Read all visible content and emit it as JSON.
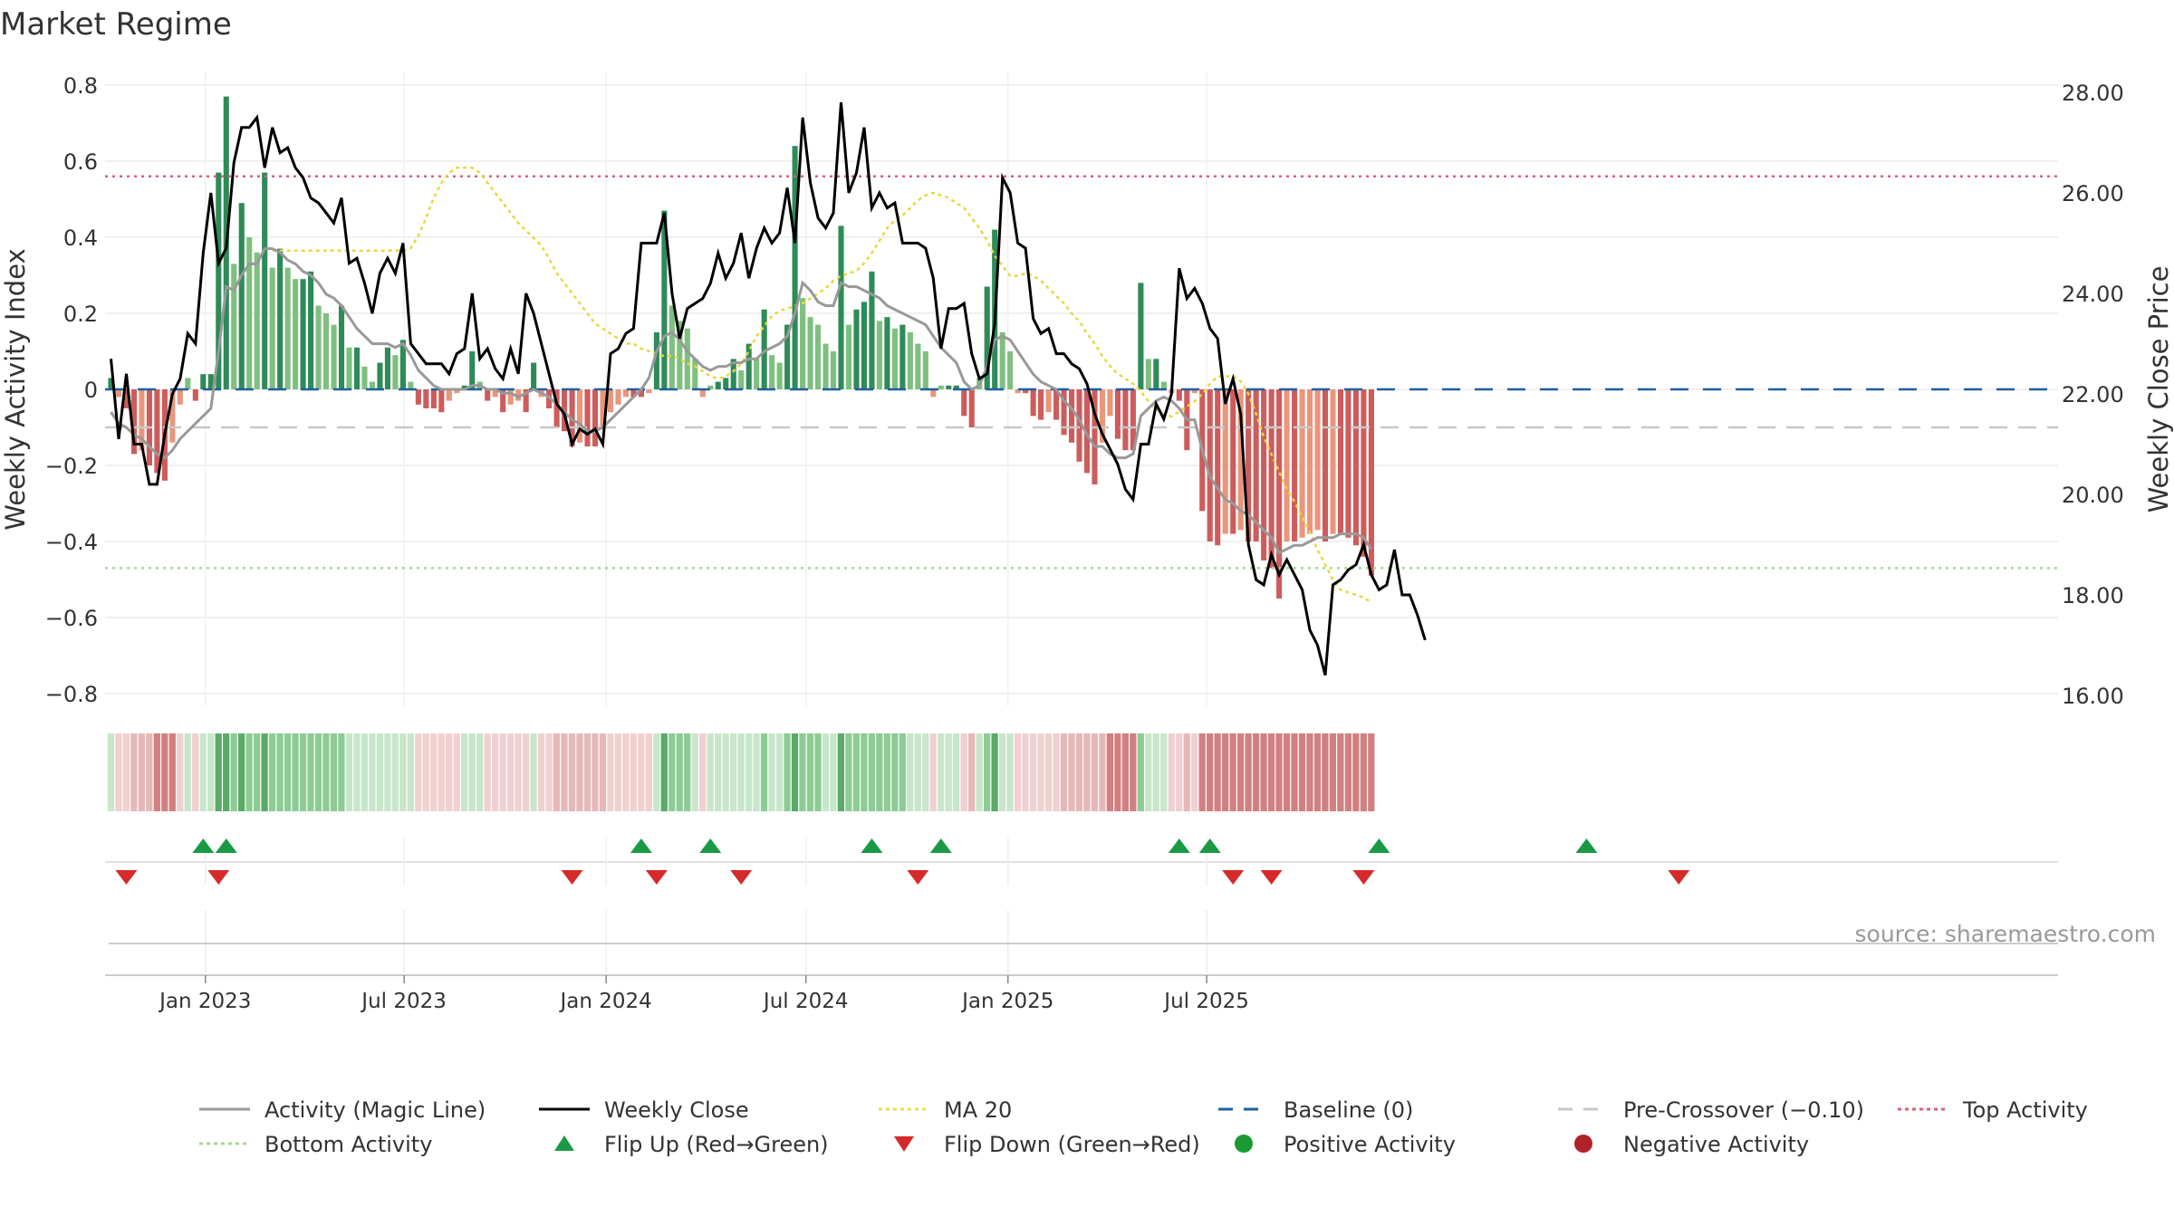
{
  "title": "Market Regime",
  "source": "source: sharemaestro.com",
  "chart_data": {
    "type": "bar",
    "x_start": "2022-10-07",
    "x_interval": "weekly",
    "x_ticks": [
      "Jan 2023",
      "Jul 2023",
      "Jan 2024",
      "Jul 2024",
      "Jan 2025",
      "Jul 2025"
    ],
    "left_axis": {
      "label": "Weekly Activity Index",
      "range": [
        -0.83,
        0.8
      ],
      "ticks": [
        "0.8",
        "0.6",
        "0.4",
        "0.2",
        "0",
        "−0.2",
        "−0.4",
        "−0.6",
        "−0.8"
      ]
    },
    "right_axis": {
      "label": "Weekly Close Price",
      "range": [
        15.6,
        28.2
      ],
      "ticks": [
        "28.00",
        "26.00",
        "24.00",
        "22.00",
        "20.00",
        "18.00",
        "16.00"
      ]
    },
    "reference_lines": {
      "baseline": 0,
      "pre_crossover": -0.1,
      "top_activity": 0.56,
      "bottom_activity": -0.47
    },
    "activity_index": [
      0.03,
      -0.02,
      -0.05,
      -0.17,
      -0.16,
      -0.2,
      -0.22,
      -0.24,
      -0.14,
      -0.04,
      0.03,
      -0.03,
      0.04,
      0.04,
      0.57,
      0.77,
      0.33,
      0.49,
      0.4,
      0.36,
      0.57,
      0.32,
      0.37,
      0.32,
      0.29,
      0.29,
      0.31,
      0.22,
      0.2,
      0.17,
      0.22,
      0.11,
      0.11,
      0.06,
      0.02,
      0.07,
      0.11,
      0.09,
      0.13,
      0.02,
      -0.04,
      -0.05,
      -0.05,
      -0.06,
      -0.03,
      -0.01,
      0.01,
      0.1,
      0.02,
      -0.03,
      -0.02,
      -0.06,
      -0.04,
      -0.03,
      -0.06,
      0.07,
      -0.02,
      -0.05,
      -0.1,
      -0.11,
      -0.15,
      -0.14,
      -0.15,
      -0.15,
      -0.1,
      -0.06,
      -0.04,
      -0.02,
      -0.02,
      -0.02,
      -0.01,
      0.15,
      0.47,
      0.22,
      0.18,
      0.16,
      0.08,
      -0.02,
      0.01,
      0.02,
      0.03,
      0.08,
      0.05,
      0.12,
      0.08,
      0.21,
      0.09,
      0.07,
      0.17,
      0.64,
      0.24,
      0.19,
      0.17,
      0.12,
      0.1,
      0.43,
      0.17,
      0.21,
      0.23,
      0.31,
      0.18,
      0.19,
      0.16,
      0.17,
      0.15,
      0.12,
      0.1,
      -0.02,
      0.01,
      0.01,
      0.01,
      -0.07,
      -0.1,
      0.03,
      0.27,
      0.42,
      0.15,
      0.1,
      -0.01,
      -0.01,
      -0.07,
      -0.08,
      -0.06,
      -0.08,
      -0.12,
      -0.14,
      -0.19,
      -0.22,
      -0.25,
      -0.14,
      -0.07,
      -0.13,
      -0.16,
      -0.16,
      0.28,
      0.08,
      0.08,
      0.02,
      -0.01,
      -0.03,
      -0.16,
      -0.01,
      -0.32,
      -0.4,
      -0.41,
      -0.38,
      -0.38,
      -0.37,
      -0.4,
      -0.4,
      -0.45,
      -0.47,
      -0.55,
      -0.4,
      -0.4,
      -0.39,
      -0.38,
      -0.37,
      -0.4,
      -0.38,
      -0.38,
      -0.39,
      -0.41,
      -0.44,
      -0.49
    ],
    "weekly_close": [
      22.7,
      21.1,
      22.4,
      21.0,
      21.0,
      20.2,
      20.2,
      21.2,
      22.0,
      22.3,
      23.2,
      23.0,
      24.8,
      26.0,
      24.6,
      24.9,
      26.6,
      27.3,
      27.3,
      27.5,
      26.5,
      27.3,
      26.8,
      26.9,
      26.5,
      26.3,
      25.9,
      25.8,
      25.6,
      25.4,
      25.9,
      24.6,
      24.7,
      24.2,
      23.6,
      24.4,
      24.7,
      24.4,
      25.0,
      23.0,
      22.8,
      22.6,
      22.6,
      22.6,
      22.4,
      22.8,
      22.9,
      24.0,
      22.7,
      22.9,
      22.5,
      22.3,
      22.9,
      22.4,
      24.0,
      23.6,
      23.0,
      22.4,
      21.8,
      21.6,
      21.0,
      21.3,
      21.2,
      21.3,
      21.0,
      22.8,
      22.9,
      23.2,
      23.3,
      25.0,
      25.0,
      25.0,
      25.6,
      24.0,
      23.1,
      23.7,
      23.8,
      23.9,
      24.2,
      24.8,
      24.3,
      24.6,
      25.2,
      24.3,
      24.9,
      25.3,
      25.0,
      25.2,
      26.1,
      25.0,
      27.5,
      26.2,
      25.5,
      25.3,
      25.6,
      27.8,
      26.0,
      26.4,
      27.3,
      25.7,
      26.0,
      25.7,
      25.8,
      25.0,
      25.0,
      25.0,
      24.9,
      24.3,
      22.9,
      23.7,
      23.7,
      23.8,
      22.8,
      22.3,
      22.4,
      23.4,
      26.3,
      26.0,
      25.0,
      24.9,
      23.5,
      23.2,
      23.3,
      22.8,
      22.8,
      22.6,
      22.5,
      22.2,
      21.6,
      21.2,
      20.9,
      20.6,
      20.1,
      19.9,
      21.0,
      21.0,
      21.8,
      21.5,
      22.0,
      24.5,
      23.9,
      24.1,
      23.8,
      23.3,
      23.1,
      21.8,
      22.3,
      21.6,
      19.0,
      18.3,
      18.2,
      18.8,
      18.4,
      18.7,
      18.4,
      18.1,
      17.3,
      17.0,
      16.4,
      18.2,
      18.3,
      18.5,
      18.6,
      19.0,
      18.4,
      18.1,
      18.2,
      18.9,
      18.0,
      18.0,
      17.6,
      17.1
    ],
    "magic_line": [
      -0.06,
      -0.09,
      -0.1,
      -0.12,
      -0.13,
      -0.15,
      -0.17,
      -0.18,
      -0.16,
      -0.13,
      -0.11,
      -0.09,
      -0.07,
      -0.05,
      0.1,
      0.27,
      0.26,
      0.3,
      0.33,
      0.33,
      0.37,
      0.37,
      0.36,
      0.34,
      0.33,
      0.31,
      0.3,
      0.28,
      0.25,
      0.24,
      0.22,
      0.19,
      0.16,
      0.14,
      0.12,
      0.12,
      0.12,
      0.11,
      0.12,
      0.09,
      0.05,
      0.03,
      0.01,
      0.0,
      0.0,
      0.0,
      0.0,
      0.01,
      0.01,
      0.0,
      0.0,
      -0.01,
      -0.01,
      -0.02,
      -0.01,
      0.0,
      -0.01,
      -0.02,
      -0.04,
      -0.06,
      -0.08,
      -0.09,
      -0.11,
      -0.11,
      -0.1,
      -0.08,
      -0.06,
      -0.04,
      -0.02,
      0.0,
      0.03,
      0.1,
      0.14,
      0.15,
      0.13,
      0.1,
      0.08,
      0.06,
      0.05,
      0.06,
      0.06,
      0.07,
      0.07,
      0.08,
      0.08,
      0.1,
      0.11,
      0.12,
      0.14,
      0.2,
      0.28,
      0.26,
      0.23,
      0.22,
      0.22,
      0.28,
      0.27,
      0.27,
      0.26,
      0.25,
      0.24,
      0.22,
      0.21,
      0.2,
      0.19,
      0.18,
      0.17,
      0.14,
      0.11,
      0.09,
      0.07,
      0.02,
      0.0,
      0.01,
      0.06,
      0.13,
      0.14,
      0.13,
      0.1,
      0.07,
      0.04,
      0.02,
      0.01,
      0.0,
      -0.03,
      -0.05,
      -0.08,
      -0.12,
      -0.15,
      -0.15,
      -0.17,
      -0.18,
      -0.18,
      -0.17,
      -0.07,
      -0.05,
      -0.03,
      -0.02,
      -0.03,
      -0.05,
      -0.08,
      -0.08,
      -0.16,
      -0.23,
      -0.26,
      -0.29,
      -0.3,
      -0.32,
      -0.33,
      -0.35,
      -0.37,
      -0.39,
      -0.43,
      -0.42,
      -0.41,
      -0.41,
      -0.4,
      -0.39,
      -0.39,
      -0.39,
      -0.38,
      -0.38,
      -0.38,
      -0.39,
      -0.42
    ],
    "ma20_price": [
      24.85,
      24.85,
      24.85,
      24.85,
      24.85,
      24.85,
      24.85,
      24.85,
      24.85,
      24.85,
      24.85,
      24.85,
      24.85,
      24.85,
      24.85,
      24.85,
      24.85,
      24.85,
      24.9,
      25.15,
      25.5,
      25.9,
      26.2,
      26.4,
      26.5,
      26.5,
      26.5,
      26.4,
      26.2,
      26.0,
      25.8,
      25.6,
      25.4,
      25.25,
      25.1,
      24.95,
      24.7,
      24.4,
      24.2,
      24.0,
      23.8,
      23.6,
      23.4,
      23.3,
      23.2,
      23.1,
      23.0,
      23.0,
      22.9,
      22.85,
      22.8,
      22.75,
      22.75,
      22.7,
      22.6,
      22.55,
      22.45,
      22.35,
      22.3,
      22.35,
      22.45,
      22.6,
      22.85,
      23.15,
      23.35,
      23.55,
      23.65,
      23.7,
      23.75,
      23.8,
      23.9,
      24.0,
      24.1,
      24.25,
      24.35,
      24.4,
      24.45,
      24.6,
      24.8,
      25.05,
      25.3,
      25.45,
      25.55,
      25.7,
      25.85,
      25.95,
      26.0,
      25.95,
      25.9,
      25.8,
      25.7,
      25.5,
      25.3,
      25.05,
      24.75,
      24.55,
      24.35,
      24.35,
      24.4,
      24.35,
      24.25,
      24.1,
      23.95,
      23.8,
      23.6,
      23.45,
      23.2,
      23.0,
      22.75,
      22.55,
      22.4,
      22.3,
      22.2,
      22.05,
      21.85,
      21.7,
      21.6,
      21.55,
      21.65,
      21.75,
      21.85,
      22.0,
      22.2,
      22.35,
      22.35,
      22.35,
      22.25,
      22.0,
      21.6,
      21.15,
      20.8,
      20.45,
      20.1,
      19.85,
      19.55,
      19.25,
      18.9,
      18.6,
      18.3,
      18.1,
      18.05,
      18.0,
      17.95,
      17.85
    ],
    "flip_up_weeks": [
      12,
      15,
      69,
      78,
      99,
      108,
      139,
      143,
      165,
      192
    ],
    "flip_down_weeks": [
      2,
      14,
      60,
      71,
      82,
      105,
      146,
      151,
      163,
      204
    ],
    "legend": [
      {
        "label": "Activity (Magic Line)",
        "color": "#999999",
        "style": "solid"
      },
      {
        "label": "Weekly Close",
        "color": "#000000",
        "style": "solid"
      },
      {
        "label": "MA 20",
        "color": "#e8e04a",
        "style": "dotted"
      },
      {
        "label": "Baseline (0)",
        "color": "#1f5fa0",
        "style": "dashed"
      },
      {
        "label": "Pre-Crossover (−0.10)",
        "color": "#c8c8c8",
        "style": "dashed"
      },
      {
        "label": "Top Activity",
        "color": "#d9607a",
        "style": "dotted"
      },
      {
        "label": "Bottom Activity",
        "color": "#a6d98a",
        "style": "dotted"
      },
      {
        "label": "Flip Up (Red→Green)",
        "color": "#1a9a45",
        "style": "triangle-up"
      },
      {
        "label": "Flip Down (Green→Red)",
        "color": "#d42a2a",
        "style": "triangle-down"
      },
      {
        "label": "Positive Activity",
        "color": "#1a9a30",
        "style": "dot"
      },
      {
        "label": "Negative Activity",
        "color": "#b02228",
        "style": "dot"
      }
    ],
    "grid": true
  }
}
